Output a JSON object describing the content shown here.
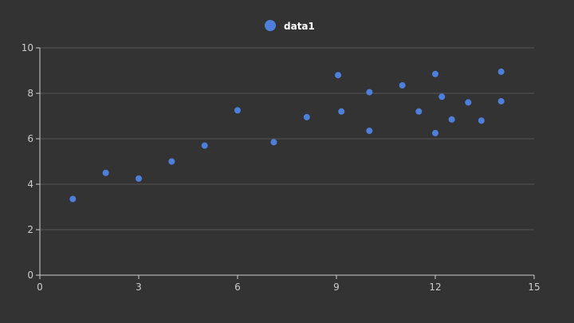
{
  "chart_data": {
    "type": "scatter",
    "title": "",
    "xlabel": "",
    "ylabel": "",
    "xlim": [
      0,
      15
    ],
    "ylim": [
      0,
      10
    ],
    "xticks": [
      0,
      3,
      6,
      9,
      12,
      15
    ],
    "yticks": [
      0,
      2,
      4,
      6,
      8,
      10
    ],
    "grid": "horizontal",
    "legend_position": "top-center",
    "series": [
      {
        "name": "data1",
        "color": "#4d7fdb",
        "points": [
          {
            "x": 1.0,
            "y": 3.35
          },
          {
            "x": 2.0,
            "y": 4.5
          },
          {
            "x": 3.0,
            "y": 4.25
          },
          {
            "x": 4.0,
            "y": 5.0
          },
          {
            "x": 5.0,
            "y": 5.7
          },
          {
            "x": 6.0,
            "y": 7.25
          },
          {
            "x": 7.1,
            "y": 5.85
          },
          {
            "x": 8.1,
            "y": 6.95
          },
          {
            "x": 9.05,
            "y": 8.8
          },
          {
            "x": 9.15,
            "y": 7.2
          },
          {
            "x": 10.0,
            "y": 8.05
          },
          {
            "x": 10.0,
            "y": 6.35
          },
          {
            "x": 11.0,
            "y": 8.35
          },
          {
            "x": 11.5,
            "y": 7.2
          },
          {
            "x": 12.0,
            "y": 8.85
          },
          {
            "x": 12.0,
            "y": 6.25
          },
          {
            "x": 12.2,
            "y": 7.85
          },
          {
            "x": 12.5,
            "y": 6.85
          },
          {
            "x": 13.0,
            "y": 7.6
          },
          {
            "x": 13.4,
            "y": 6.8
          },
          {
            "x": 14.0,
            "y": 8.95
          },
          {
            "x": 14.0,
            "y": 7.65
          }
        ]
      }
    ]
  }
}
